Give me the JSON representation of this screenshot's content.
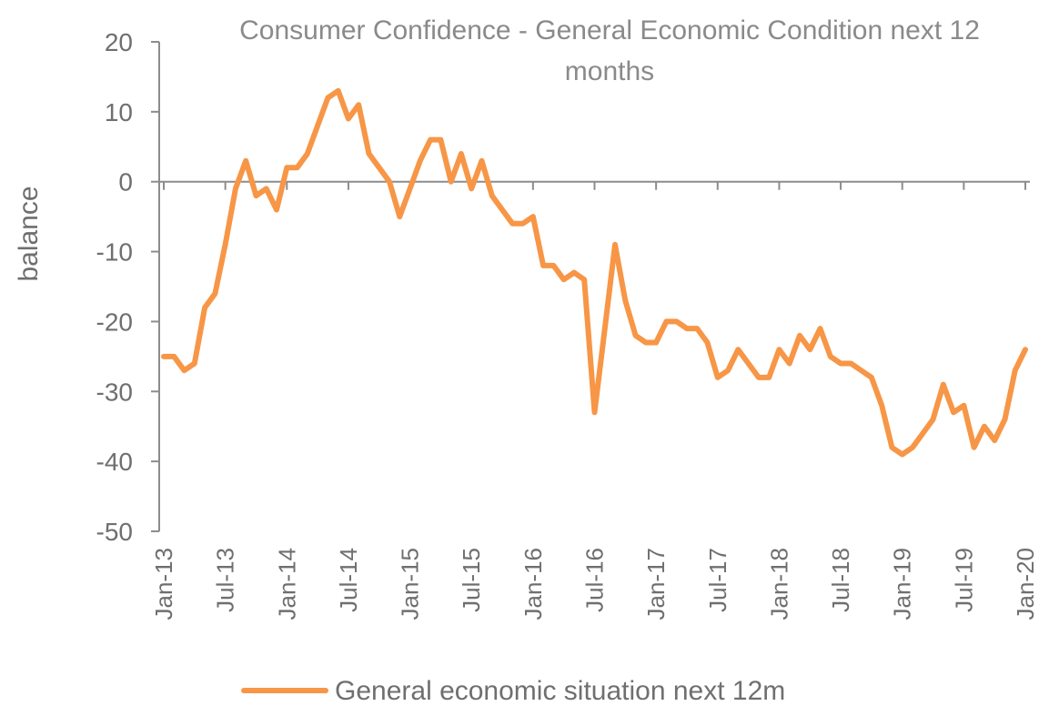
{
  "chart_data": {
    "type": "line",
    "title_line1": "Consumer Confidence - General Economic Condition next 12",
    "title_line2": "months",
    "ylabel": "balance",
    "ylim": [
      -50,
      20
    ],
    "yticks": [
      "20",
      "10",
      "0",
      "-10",
      "-20",
      "-30",
      "-40",
      "-50"
    ],
    "ytick_values": [
      20,
      10,
      0,
      -10,
      -20,
      -30,
      -40,
      -50
    ],
    "xtick_labels": [
      "Jan-13",
      "Jul-13",
      "Jan-14",
      "Jul-14",
      "Jan-15",
      "Jul-15",
      "Jan-16",
      "Jul-16",
      "Jan-17",
      "Jul-17",
      "Jan-18",
      "Jul-18",
      "Jan-19",
      "Jul-19",
      "Jan-20"
    ],
    "xtick_month_index": [
      0,
      6,
      12,
      18,
      24,
      30,
      36,
      42,
      48,
      54,
      60,
      66,
      72,
      78,
      84
    ],
    "grid": false,
    "legend_position": "bottom",
    "color": "#F79646",
    "series": [
      {
        "name": "General economic situation next 12m",
        "start": "Jan-13",
        "frequency": "monthly",
        "values": [
          -25,
          -25,
          -27,
          -26,
          -18,
          -16,
          -9,
          -1,
          3,
          -2,
          -1,
          -4,
          2,
          2,
          4,
          8,
          12,
          13,
          9,
          11,
          4,
          2,
          0,
          -5,
          -1,
          3,
          6,
          6,
          0,
          4,
          -1,
          3,
          -2,
          -4,
          -6,
          -6,
          -5,
          -12,
          -12,
          -14,
          -13,
          -14,
          -33,
          -21,
          -9,
          -17,
          -22,
          -23,
          -23,
          -20,
          -20,
          -21,
          -21,
          -23,
          -28,
          -27,
          -24,
          -26,
          -28,
          -28,
          -24,
          -26,
          -22,
          -24,
          -21,
          -25,
          -26,
          -26,
          -27,
          -28,
          -32,
          -38,
          -39,
          -38,
          -36,
          -34,
          -29,
          -33,
          -32,
          -38,
          -35,
          -37,
          -34,
          -27,
          -24
        ]
      }
    ]
  }
}
